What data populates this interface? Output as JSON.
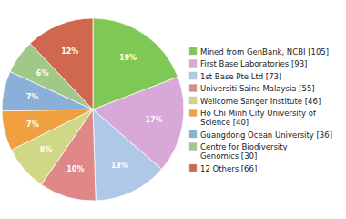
{
  "chart_data": {
    "type": "pie",
    "categories": [
      "Mined from GenBank, NCBI [105]",
      "First Base Laboratories [93]",
      "1st Base Pte Ltd [73]",
      "Universiti Sains Malaysia [55]",
      "Wellcome Sanger Institute [46]",
      "Ho Chi Minh City University of\nScience [40]",
      "Guangdong Ocean University [36]",
      "Centre for Biodiversity\nGenomics [30]",
      "12 Others [66]"
    ],
    "values": [
      19,
      17,
      13,
      10,
      8,
      7,
      7,
      6,
      12
    ],
    "value_labels": [
      "19%",
      "17%",
      "13%",
      "10%",
      "8%",
      "7%",
      "7%",
      "6%",
      "12%"
    ],
    "colors": [
      "#80c855",
      "#d8a8d8",
      "#b0c8e8",
      "#e08888",
      "#d0d888",
      "#f0a040",
      "#88b0d8",
      "#a0c888",
      "#d06850"
    ],
    "data_labels": true,
    "legend": "right"
  }
}
